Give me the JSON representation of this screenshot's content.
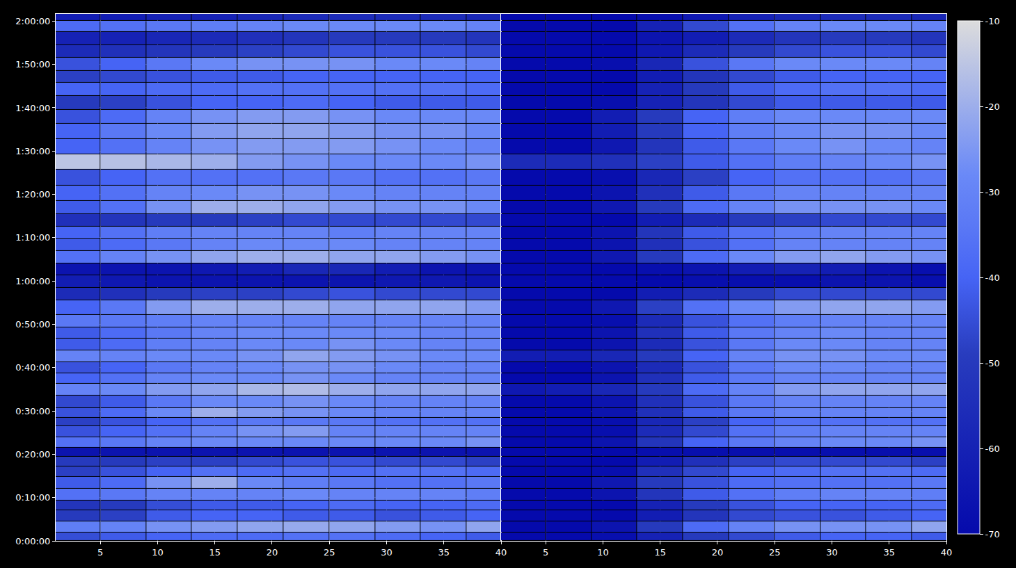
{
  "chart_data": {
    "type": "heatmap",
    "color": "Inferno",
    "grid": true,
    "x": [
      3,
      7,
      11,
      15,
      19,
      23,
      27,
      31,
      35,
      39
    ],
    "y": [
      60,
      180,
      360,
      480,
      630,
      810,
      960,
      1110,
      1230,
      1350,
      1530,
      1650,
      1770,
      1920,
      2100,
      2250,
      2400,
      2550,
      2730,
      2880,
      3030,
      3240,
      3420,
      3600,
      3750,
      3930,
      4110,
      4260,
      4440,
      4620,
      4800,
      5040,
      5250,
      5460,
      5670,
      5880,
      6060,
      6270,
      6420,
      6600,
      6780,
      6960,
      7140,
      7260
    ],
    "xlim": [
      1.1,
      40
    ],
    "xticks": [
      5,
      10,
      15,
      20,
      25,
      30,
      35,
      40
    ],
    "ylim": [
      0,
      7300
    ],
    "yticks": [
      {
        "value": 0,
        "label": "0:00:00"
      },
      {
        "value": 600,
        "label": "0:10:00"
      },
      {
        "value": 1200,
        "label": "0:20:00"
      },
      {
        "value": 1800,
        "label": "0:30:00"
      },
      {
        "value": 2400,
        "label": "0:40:00"
      },
      {
        "value": 3000,
        "label": "0:50:00"
      },
      {
        "value": 3600,
        "label": "1:00:00"
      },
      {
        "value": 4200,
        "label": "1:10:00"
      },
      {
        "value": 4800,
        "label": "1:20:00"
      },
      {
        "value": 5400,
        "label": "1:30:00"
      },
      {
        "value": 6000,
        "label": "1:40:00"
      },
      {
        "value": 6600,
        "label": "1:50:00"
      },
      {
        "value": 7200,
        "label": "2:00:00"
      }
    ],
    "colorbar_range": [
      -70,
      -10
    ],
    "colorbar_ticks": [
      -70,
      -60,
      -50,
      -40,
      -30,
      -20,
      -10
    ],
    "panels": [
      {
        "values": [
          [
            -45,
            -42,
            -40,
            -38,
            -38,
            -36,
            -36,
            -38,
            -40,
            -42
          ],
          [
            -32,
            -30,
            -26,
            -24,
            -22,
            -21,
            -22,
            -24,
            -26,
            -22
          ],
          [
            -50,
            -48,
            -42,
            -40,
            -40,
            -42,
            -42,
            -44,
            -42,
            -40
          ],
          [
            -52,
            -50,
            -45,
            -42,
            -42,
            -40,
            -38,
            -40,
            -40,
            -38
          ],
          [
            -36,
            -34,
            -30,
            -30,
            -30,
            -28,
            -30,
            -30,
            -30,
            -32
          ],
          [
            -42,
            -38,
            -26,
            -20,
            -28,
            -32,
            -34,
            -36,
            -36,
            -34
          ],
          [
            -48,
            -44,
            -40,
            -36,
            -38,
            -36,
            -38,
            -36,
            -36,
            -38
          ],
          [
            -50,
            -50,
            -48,
            -48,
            -46,
            -44,
            -44,
            -46,
            -46,
            -48
          ],
          [
            -66,
            -66,
            -66,
            -66,
            -66,
            -66,
            -66,
            -66,
            -66,
            -66
          ],
          [
            -36,
            -34,
            -30,
            -28,
            -28,
            -28,
            -28,
            -28,
            -28,
            -26
          ],
          [
            -44,
            -40,
            -36,
            -30,
            -26,
            -24,
            -30,
            -30,
            -30,
            -30
          ],
          [
            -48,
            -44,
            -40,
            -36,
            -34,
            -34,
            -34,
            -36,
            -36,
            -36
          ],
          [
            -44,
            -38,
            -28,
            -20,
            -24,
            -26,
            -28,
            -30,
            -30,
            -30
          ],
          [
            -46,
            -42,
            -34,
            -28,
            -28,
            -26,
            -28,
            -30,
            -30,
            -30
          ],
          [
            -30,
            -28,
            -24,
            -22,
            -18,
            -17,
            -20,
            -22,
            -22,
            -22
          ],
          [
            -40,
            -36,
            -30,
            -28,
            -28,
            -26,
            -28,
            -30,
            -30,
            -30
          ],
          [
            -44,
            -40,
            -34,
            -30,
            -28,
            -26,
            -26,
            -28,
            -30,
            -30
          ],
          [
            -30,
            -30,
            -28,
            -28,
            -26,
            -22,
            -24,
            -26,
            -28,
            -28
          ],
          [
            -42,
            -38,
            -32,
            -30,
            -28,
            -28,
            -26,
            -28,
            -30,
            -30
          ],
          [
            -42,
            -38,
            -34,
            -30,
            -28,
            -28,
            -28,
            -28,
            -30,
            -30
          ],
          [
            -34,
            -34,
            -32,
            -30,
            -30,
            -30,
            -30,
            -30,
            -30,
            -30
          ],
          [
            -40,
            -34,
            -24,
            -20,
            -20,
            -20,
            -22,
            -22,
            -22,
            -24
          ],
          [
            -56,
            -54,
            -50,
            -48,
            -48,
            -46,
            -44,
            -46,
            -46,
            -46
          ],
          [
            -62,
            -64,
            -66,
            -66,
            -66,
            -66,
            -66,
            -64,
            -64,
            -66
          ],
          [
            -66,
            -66,
            -66,
            -64,
            -62,
            -58,
            -58,
            -62,
            -66,
            -66
          ],
          [
            -36,
            -30,
            -26,
            -22,
            -20,
            -20,
            -22,
            -22,
            -24,
            -26
          ],
          [
            -42,
            -38,
            -34,
            -30,
            -28,
            -28,
            -28,
            -30,
            -30,
            -30
          ],
          [
            -40,
            -36,
            -32,
            -30,
            -30,
            -30,
            -32,
            -30,
            -30,
            -30
          ],
          [
            -54,
            -52,
            -50,
            -50,
            -48,
            -46,
            -46,
            -46,
            -46,
            -46
          ],
          [
            -42,
            -36,
            -26,
            -20,
            -20,
            -22,
            -24,
            -26,
            -26,
            -28
          ],
          [
            -40,
            -36,
            -30,
            -28,
            -26,
            -26,
            -28,
            -30,
            -30,
            -30
          ],
          [
            -44,
            -40,
            -36,
            -36,
            -36,
            -34,
            -34,
            -36,
            -36,
            -34
          ],
          [
            -15,
            -16,
            -18,
            -20,
            -24,
            -26,
            -28,
            -28,
            -28,
            -26
          ],
          [
            -40,
            -36,
            -30,
            -26,
            -24,
            -24,
            -24,
            -26,
            -28,
            -30
          ],
          [
            -40,
            -34,
            -28,
            -24,
            -22,
            -22,
            -24,
            -26,
            -26,
            -28
          ],
          [
            -44,
            -38,
            -30,
            -26,
            -24,
            -24,
            -26,
            -28,
            -28,
            -28
          ],
          [
            -50,
            -48,
            -44,
            -40,
            -40,
            -38,
            -40,
            -42,
            -42,
            -42
          ],
          [
            -40,
            -40,
            -38,
            -38,
            -36,
            -36,
            -36,
            -36,
            -36,
            -38
          ],
          [
            -48,
            -46,
            -44,
            -42,
            -42,
            -40,
            -40,
            -40,
            -40,
            -40
          ],
          [
            -44,
            -40,
            -34,
            -28,
            -26,
            -26,
            -26,
            -28,
            -28,
            -30
          ],
          [
            -56,
            -54,
            -52,
            -50,
            -48,
            -46,
            -44,
            -44,
            -44,
            -46
          ],
          [
            -60,
            -60,
            -58,
            -56,
            -54,
            -52,
            -50,
            -50,
            -50,
            -52
          ],
          [
            -38,
            -36,
            -34,
            -32,
            -30,
            -28,
            -28,
            -28,
            -28,
            -30
          ],
          [
            -62,
            -62,
            -60,
            -60,
            -58,
            -56,
            -56,
            -56,
            -56,
            -58
          ]
        ]
      },
      {
        "values": [
          [
            -70,
            -70,
            -68,
            -60,
            -50,
            -46,
            -42,
            -40,
            -40,
            -42
          ],
          [
            -70,
            -70,
            -66,
            -50,
            -38,
            -30,
            -26,
            -26,
            -26,
            -22
          ],
          [
            -70,
            -70,
            -70,
            -62,
            -52,
            -46,
            -44,
            -44,
            -42,
            -40
          ],
          [
            -70,
            -70,
            -70,
            -60,
            -50,
            -44,
            -40,
            -40,
            -40,
            -38
          ],
          [
            -70,
            -70,
            -66,
            -52,
            -42,
            -36,
            -32,
            -30,
            -30,
            -32
          ],
          [
            -70,
            -70,
            -64,
            -50,
            -44,
            -38,
            -36,
            -36,
            -36,
            -34
          ],
          [
            -70,
            -70,
            -68,
            -54,
            -46,
            -40,
            -38,
            -36,
            -36,
            -38
          ],
          [
            -70,
            -70,
            -70,
            -62,
            -54,
            -48,
            -46,
            -46,
            -46,
            -48
          ],
          [
            -70,
            -70,
            -70,
            -68,
            -68,
            -68,
            -68,
            -68,
            -68,
            -68
          ],
          [
            -70,
            -70,
            -66,
            -52,
            -40,
            -34,
            -30,
            -28,
            -28,
            -26
          ],
          [
            -70,
            -70,
            -68,
            -56,
            -46,
            -36,
            -32,
            -30,
            -30,
            -30
          ],
          [
            -70,
            -70,
            -68,
            -58,
            -48,
            -40,
            -36,
            -36,
            -36,
            -36
          ],
          [
            -70,
            -70,
            -66,
            -54,
            -42,
            -34,
            -30,
            -30,
            -30,
            -30
          ],
          [
            -70,
            -70,
            -66,
            -54,
            -44,
            -34,
            -30,
            -30,
            -30,
            -30
          ],
          [
            -64,
            -62,
            -58,
            -50,
            -38,
            -30,
            -24,
            -22,
            -22,
            -22
          ],
          [
            -70,
            -70,
            -66,
            -54,
            -42,
            -34,
            -30,
            -30,
            -30,
            -30
          ],
          [
            -70,
            -70,
            -66,
            -56,
            -44,
            -34,
            -28,
            -28,
            -30,
            -30
          ],
          [
            -62,
            -62,
            -58,
            -50,
            -40,
            -30,
            -26,
            -26,
            -28,
            -28
          ],
          [
            -70,
            -70,
            -66,
            -56,
            -44,
            -34,
            -28,
            -28,
            -30,
            -30
          ],
          [
            -70,
            -70,
            -66,
            -54,
            -42,
            -34,
            -30,
            -28,
            -30,
            -30
          ],
          [
            -70,
            -70,
            -68,
            -56,
            -44,
            -36,
            -32,
            -30,
            -30,
            -30
          ],
          [
            -70,
            -70,
            -64,
            -48,
            -36,
            -28,
            -24,
            -22,
            -22,
            -24
          ],
          [
            -70,
            -70,
            -70,
            -62,
            -56,
            -50,
            -46,
            -46,
            -46,
            -46
          ],
          [
            -70,
            -70,
            -70,
            -70,
            -68,
            -68,
            -68,
            -66,
            -66,
            -68
          ],
          [
            -70,
            -70,
            -70,
            -68,
            -66,
            -62,
            -60,
            -62,
            -66,
            -68
          ],
          [
            -70,
            -70,
            -64,
            -50,
            -38,
            -28,
            -24,
            -22,
            -24,
            -26
          ],
          [
            -70,
            -70,
            -66,
            -54,
            -44,
            -36,
            -30,
            -30,
            -30,
            -30
          ],
          [
            -70,
            -70,
            -66,
            -52,
            -42,
            -36,
            -32,
            -30,
            -30,
            -30
          ],
          [
            -70,
            -70,
            -70,
            -62,
            -56,
            -50,
            -48,
            -46,
            -46,
            -46
          ],
          [
            -70,
            -70,
            -64,
            -50,
            -38,
            -30,
            -26,
            -26,
            -26,
            -28
          ],
          [
            -70,
            -70,
            -66,
            -54,
            -42,
            -34,
            -30,
            -30,
            -30,
            -30
          ],
          [
            -70,
            -70,
            -68,
            -58,
            -48,
            -40,
            -36,
            -36,
            -36,
            -34
          ],
          [
            -56,
            -56,
            -54,
            -48,
            -42,
            -36,
            -32,
            -30,
            -28,
            -26
          ],
          [
            -70,
            -70,
            -64,
            -52,
            -42,
            -34,
            -28,
            -26,
            -28,
            -30
          ],
          [
            -70,
            -70,
            -62,
            -50,
            -40,
            -32,
            -28,
            -26,
            -26,
            -28
          ],
          [
            -70,
            -70,
            -62,
            -50,
            -40,
            -32,
            -28,
            -28,
            -28,
            -28
          ],
          [
            -70,
            -70,
            -68,
            -60,
            -52,
            -46,
            -42,
            -42,
            -42,
            -42
          ],
          [
            -70,
            -70,
            -70,
            -60,
            -50,
            -42,
            -38,
            -36,
            -36,
            -38
          ],
          [
            -70,
            -70,
            -70,
            -62,
            -52,
            -46,
            -42,
            -40,
            -40,
            -40
          ],
          [
            -70,
            -70,
            -68,
            -58,
            -44,
            -34,
            -28,
            -28,
            -28,
            -30
          ],
          [
            -70,
            -70,
            -70,
            -64,
            -56,
            -50,
            -46,
            -44,
            -44,
            -46
          ],
          [
            -70,
            -70,
            -70,
            -66,
            -62,
            -56,
            -52,
            -50,
            -50,
            -52
          ],
          [
            -70,
            -70,
            -70,
            -60,
            -46,
            -36,
            -30,
            -28,
            -28,
            -30
          ],
          [
            -70,
            -70,
            -70,
            -68,
            -64,
            -60,
            -58,
            -56,
            -56,
            -58
          ]
        ]
      }
    ]
  }
}
